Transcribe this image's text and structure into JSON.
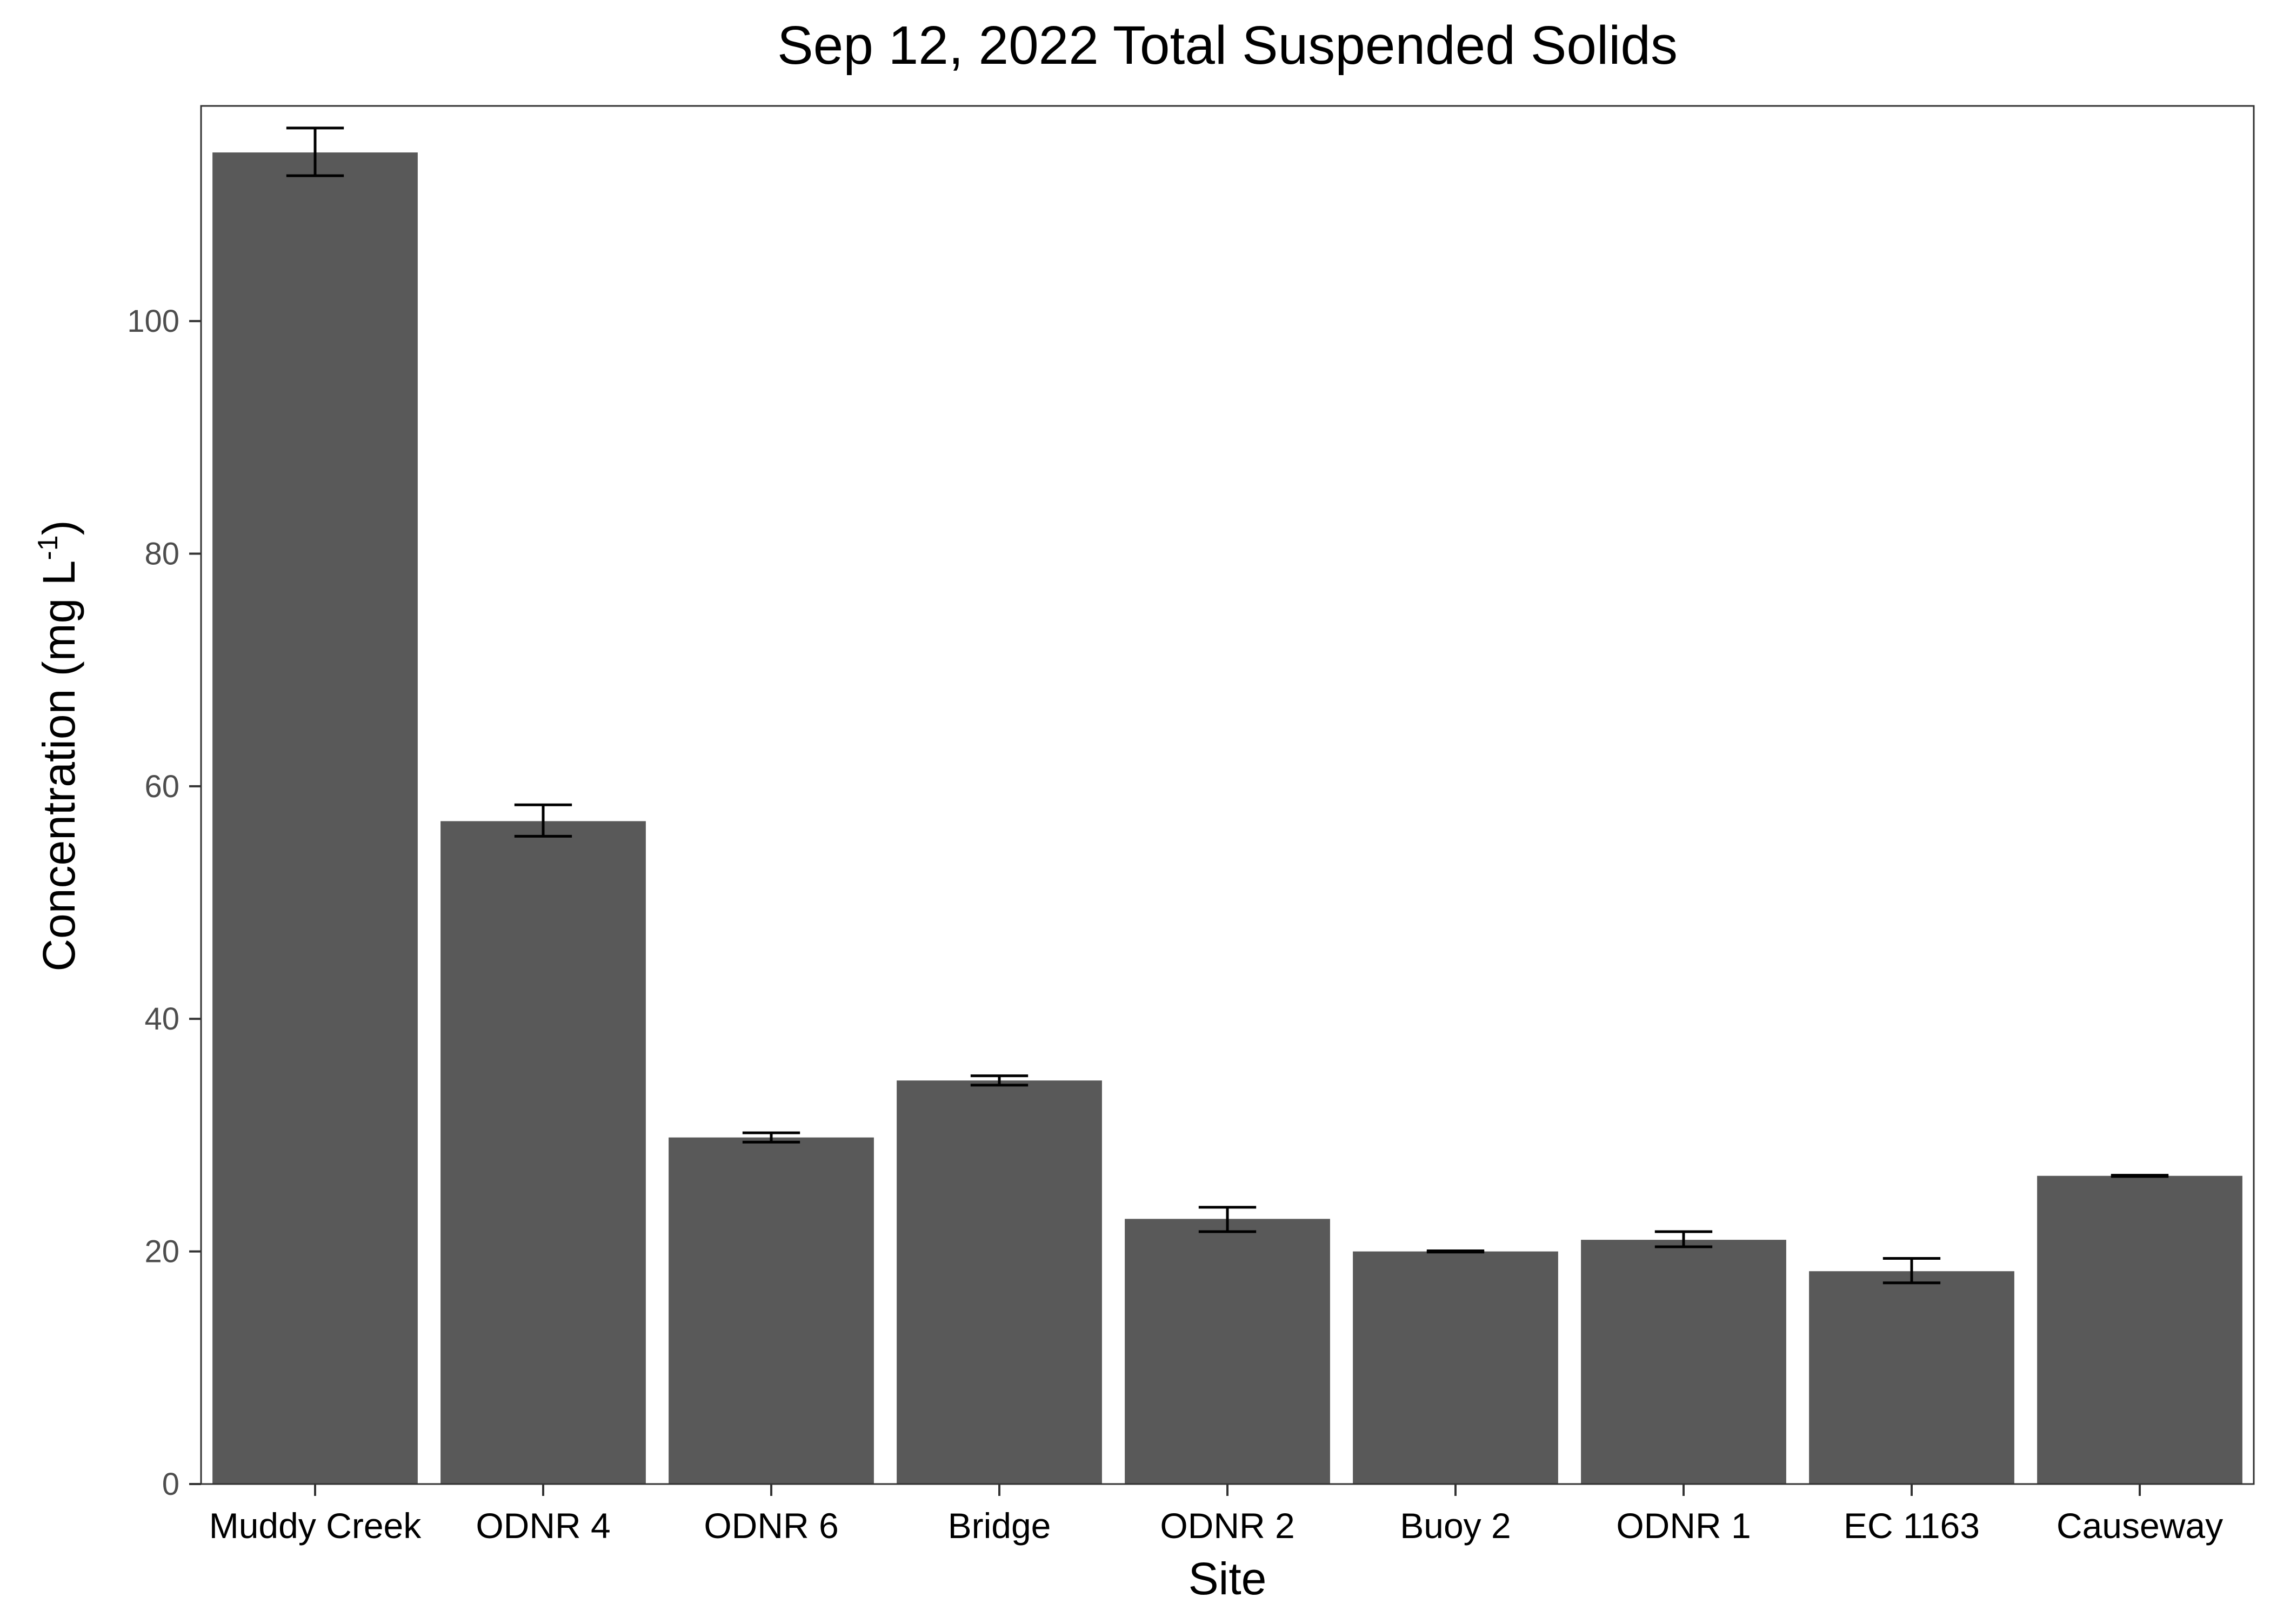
{
  "chart_data": {
    "type": "bar",
    "title": "Sep 12, 2022 Total Suspended Solids",
    "xlabel": "Site",
    "ylabel": {
      "main": "Concentration (mg L",
      "superscript": "-1",
      "close": ")"
    },
    "categories": [
      "Muddy Creek",
      "ODNR 4",
      "ODNR 6",
      "Bridge",
      "ODNR 2",
      "Buoy 2",
      "ODNR 1",
      "EC 1163",
      "Causeway"
    ],
    "values": [
      114.5,
      57.0,
      29.8,
      34.7,
      22.8,
      20.0,
      21.0,
      18.3,
      26.5
    ],
    "error_low": [
      112.5,
      55.7,
      29.4,
      34.3,
      21.7,
      19.95,
      20.4,
      17.3,
      26.45
    ],
    "error_high": [
      116.6,
      58.4,
      30.2,
      35.1,
      23.8,
      20.05,
      21.7,
      19.4,
      26.55
    ],
    "yticks": [
      0,
      20,
      40,
      60,
      80,
      100
    ],
    "ylim": [
      0,
      118.5
    ],
    "grid": false,
    "bar_color": "#595959",
    "panel_border_color": "#333333"
  }
}
